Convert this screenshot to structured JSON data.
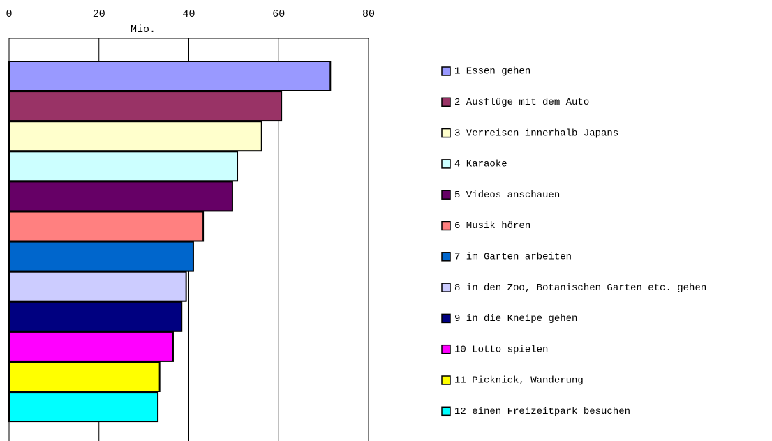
{
  "chart_data": {
    "type": "bar",
    "orientation": "horizontal",
    "x_label": "Mio.",
    "categories": [
      "1 Essen gehen",
      "2 Ausflüge mit dem Auto",
      "3 Verreisen innerhalb Japans",
      "4 Karaoke",
      "5 Videos anschauen",
      "6 Musik hören",
      "7 im Garten arbeiten",
      "8 in den Zoo, Botanischen Garten etc. gehen",
      "9 in die Kneipe gehen",
      "10 Lotto spielen",
      "11 Picknick, Wanderung",
      "12 einen Freizeitpark besuchen"
    ],
    "values": [
      71.5,
      60.6,
      56.2,
      50.8,
      49.7,
      43.2,
      41.0,
      39.4,
      38.4,
      36.5,
      33.5,
      33.1
    ],
    "colors": [
      "#9999ff",
      "#993366",
      "#ffffcc",
      "#ccffff",
      "#660066",
      "#ff8080",
      "#0066cc",
      "#ccccff",
      "#000080",
      "#ff00ff",
      "#ffff00",
      "#00ffff"
    ],
    "xlim": [
      0,
      80
    ],
    "xticks": [
      0,
      20,
      40,
      60,
      80
    ],
    "grid": true,
    "legend": "right"
  }
}
